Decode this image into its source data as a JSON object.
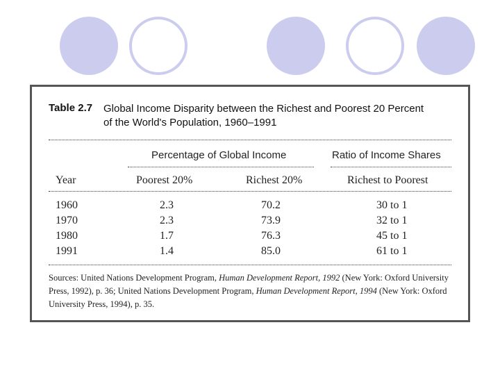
{
  "decor": {
    "circle_color": "#ccccee"
  },
  "table": {
    "label": "Table 2.7",
    "caption_line1": "Global Income Disparity between the Richest and Poorest 20 Percent",
    "caption_line2": "of the World's Population, 1960–1991",
    "group_headers": {
      "percentage": "Percentage of Global Income",
      "ratio": "Ratio of Income Shares"
    },
    "columns": {
      "year": "Year",
      "poorest": "Poorest 20%",
      "richest": "Richest 20%",
      "ratio": "Richest to Poorest"
    },
    "rows": [
      {
        "year": "1960",
        "poorest": "2.3",
        "richest": "70.2",
        "ratio": "30 to 1"
      },
      {
        "year": "1970",
        "poorest": "2.3",
        "richest": "73.9",
        "ratio": "32 to 1"
      },
      {
        "year": "1980",
        "poorest": "1.7",
        "richest": "76.3",
        "ratio": "45 to 1"
      },
      {
        "year": "1991",
        "poorest": "1.4",
        "richest": "85.0",
        "ratio": "61 to 1"
      }
    ],
    "source": {
      "part1": "Sources: United Nations Development Program, ",
      "title1": "Human Development Report, 1992",
      "part2": " (New York: Oxford University Press, 1992), p. 36; United Nations Development Program, ",
      "title2": "Human Development Report, 1994",
      "part3": " (New York: Oxford University Press, 1994), p. 35."
    }
  }
}
